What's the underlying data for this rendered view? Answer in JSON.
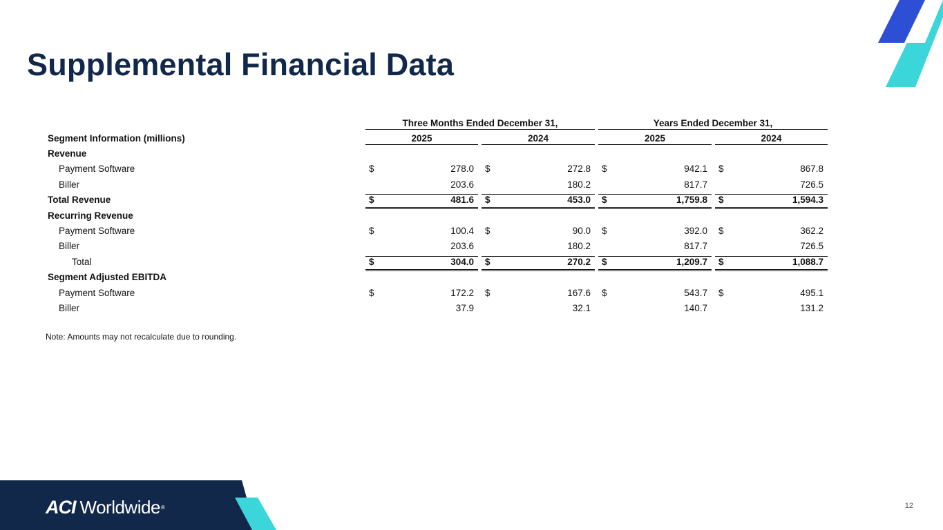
{
  "title": "Supplemental Financial Data",
  "colors": {
    "navy": "#12284a",
    "blue": "#2d4fd6",
    "teal": "#3ad6d9"
  },
  "table": {
    "group_headers": [
      "Three Months Ended December 31,",
      "Years Ended December 31,"
    ],
    "segment_label": "Segment Information (millions)",
    "years": [
      "2025",
      "2024",
      "2025",
      "2024"
    ],
    "rows": [
      {
        "label": "Revenue",
        "style": "section"
      },
      {
        "label": "Payment Software",
        "style": "item",
        "dollar": true,
        "values": [
          "278.0",
          "272.8",
          "942.1",
          "867.8"
        ]
      },
      {
        "label": "Biller",
        "style": "item",
        "values": [
          "203.6",
          "180.2",
          "817.7",
          "726.5"
        ]
      },
      {
        "label": "Total Revenue",
        "style": "total",
        "dollar": true,
        "values": [
          "481.6",
          "453.0",
          "1,759.8",
          "1,594.3"
        ]
      },
      {
        "label": "Recurring Revenue",
        "style": "section"
      },
      {
        "label": "Payment Software",
        "style": "item",
        "dollar": true,
        "values": [
          "100.4",
          "90.0",
          "392.0",
          "362.2"
        ]
      },
      {
        "label": "Biller",
        "style": "item",
        "values": [
          "203.6",
          "180.2",
          "817.7",
          "726.5"
        ]
      },
      {
        "label": "Total",
        "style": "subtotal",
        "dollar": true,
        "values": [
          "304.0",
          "270.2",
          "1,209.7",
          "1,088.7"
        ]
      },
      {
        "label": "Segment Adjusted EBITDA",
        "style": "section"
      },
      {
        "label": "Payment Software",
        "style": "item",
        "dollar": true,
        "values": [
          "172.2",
          "167.6",
          "543.7",
          "495.1"
        ]
      },
      {
        "label": "Biller",
        "style": "item",
        "values": [
          "37.9",
          "32.1",
          "140.7",
          "131.2"
        ]
      }
    ],
    "currency_symbol": "$"
  },
  "note": "Note: Amounts may not recalculate due to rounding.",
  "footer": {
    "brand_mark": "ACI",
    "brand_name": "Worldwide",
    "reg_mark": "®",
    "page_number": "12"
  }
}
